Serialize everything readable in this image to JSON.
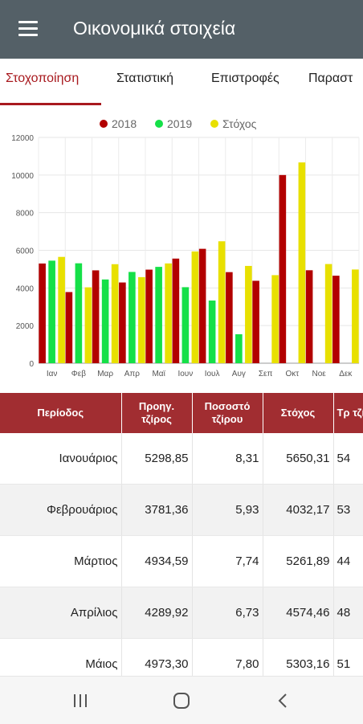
{
  "appbar": {
    "title": "Οικονομικά στοιχεία",
    "menu_icon": "hamburger-menu-icon"
  },
  "tabs": [
    {
      "label": "Στοχοποίηση",
      "active": true
    },
    {
      "label": "Στατιστική",
      "active": false
    },
    {
      "label": "Επιστροφές",
      "active": false
    },
    {
      "label": "Παραστ",
      "active": false
    }
  ],
  "colors": {
    "appbar": "#546067",
    "accent": "#a8191e",
    "header": "#a12d31",
    "s2018": "#b20000",
    "s2019": "#15e048",
    "target": "#e8e000"
  },
  "chart_data": {
    "type": "bar",
    "categories": [
      "Ιαν",
      "Φεβ",
      "Μαρ",
      "Απρ",
      "Μαϊ",
      "Ιουν",
      "Ιουλ",
      "Αυγ",
      "Σεπ",
      "Οκτ",
      "Νοε",
      "Δεκ"
    ],
    "series": [
      {
        "name": "2018",
        "color": "#b20000",
        "values": [
          5299,
          3781,
          4935,
          4290,
          4973,
          5560,
          6080,
          4840,
          4380,
          10000,
          4940,
          4650
        ]
      },
      {
        "name": "2019",
        "color": "#15e048",
        "values": [
          5450,
          5310,
          4450,
          4850,
          5120,
          4040,
          3330,
          1540,
          null,
          null,
          null,
          null
        ]
      },
      {
        "name": "Στόχος",
        "color": "#e8e000",
        "values": [
          5650,
          4032,
          5262,
          4574,
          5303,
          5940,
          6480,
          5170,
          4680,
          10670,
          5270,
          4980
        ]
      }
    ],
    "ylim": [
      0,
      12000
    ],
    "yticks": [
      0,
      2000,
      4000,
      6000,
      8000,
      10000,
      12000
    ],
    "ytick_labels": [
      "0",
      "2000",
      "4000",
      "6000",
      "8000",
      "10000",
      "12000"
    ],
    "legend_position": "top-center",
    "grid": true
  },
  "table": {
    "headers": [
      "Περίοδος",
      "Προηγ. τζίρος",
      "Ποσοστό τζίρου",
      "Στόχος",
      "Τρ τζί"
    ],
    "rows": [
      {
        "period": "Ιανουάριος",
        "prev": "5298,85",
        "pct": "8,31",
        "target": "5650,31",
        "cur": "54"
      },
      {
        "period": "Φεβρουάριος",
        "prev": "3781,36",
        "pct": "5,93",
        "target": "4032,17",
        "cur": "53"
      },
      {
        "period": "Μάρτιος",
        "prev": "4934,59",
        "pct": "7,74",
        "target": "5261,89",
        "cur": "44"
      },
      {
        "period": "Απρίλιος",
        "prev": "4289,92",
        "pct": "6,73",
        "target": "4574,46",
        "cur": "48"
      },
      {
        "period": "Μάιος",
        "prev": "4973,30",
        "pct": "7,80",
        "target": "5303,16",
        "cur": "51"
      }
    ]
  },
  "navbar": {
    "recent_icon": "recent-apps-icon",
    "home_icon": "home-icon",
    "back_icon": "back-icon"
  }
}
